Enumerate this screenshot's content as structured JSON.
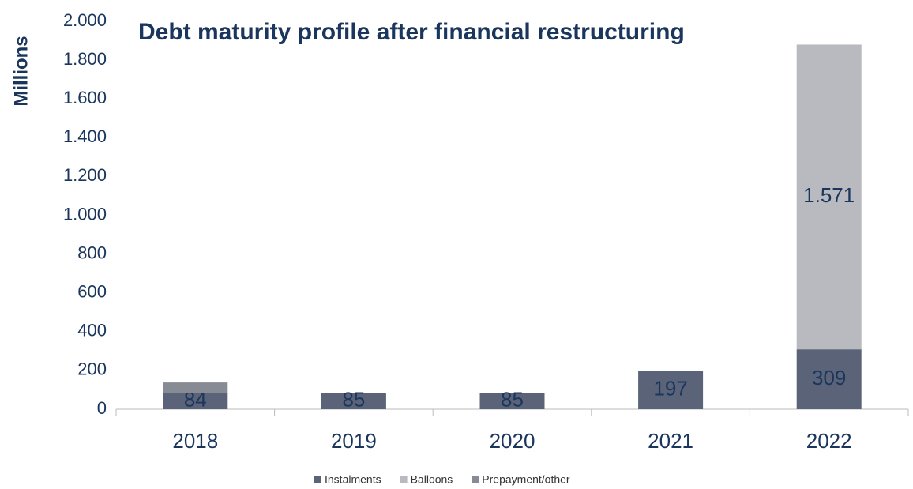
{
  "chart_data": {
    "type": "stacked_bar",
    "title": "Debt maturity profile after financial restructuring",
    "y_label": "Millions",
    "categories": [
      "2018",
      "2019",
      "2020",
      "2021",
      "2022"
    ],
    "series": [
      {
        "name": "Instalments",
        "color": "#5a6378",
        "values": [
          84,
          85,
          85,
          197,
          309
        ]
      },
      {
        "name": "Balloons",
        "color": "#b8babf",
        "values": [
          0,
          0,
          0,
          0,
          1571
        ],
        "value_labels": [
          null,
          null,
          null,
          null,
          "1.571"
        ]
      },
      {
        "name": "Prepayment/other",
        "color": "#878b94",
        "values": [
          54,
          0,
          0,
          0,
          0
        ]
      }
    ],
    "ylim": [
      0,
      2000
    ],
    "yticks": [
      0,
      200,
      400,
      600,
      800,
      {
        "value": 1000,
        "label": "1.000"
      },
      {
        "value": 1200,
        "label": "1.200"
      },
      {
        "value": 1400,
        "label": "1.400"
      },
      {
        "value": 1600,
        "label": "1.600"
      },
      {
        "value": 1800,
        "label": "1.800"
      },
      {
        "value": 2000,
        "label": "2.000"
      }
    ],
    "grid": false,
    "legend": "bottom"
  }
}
